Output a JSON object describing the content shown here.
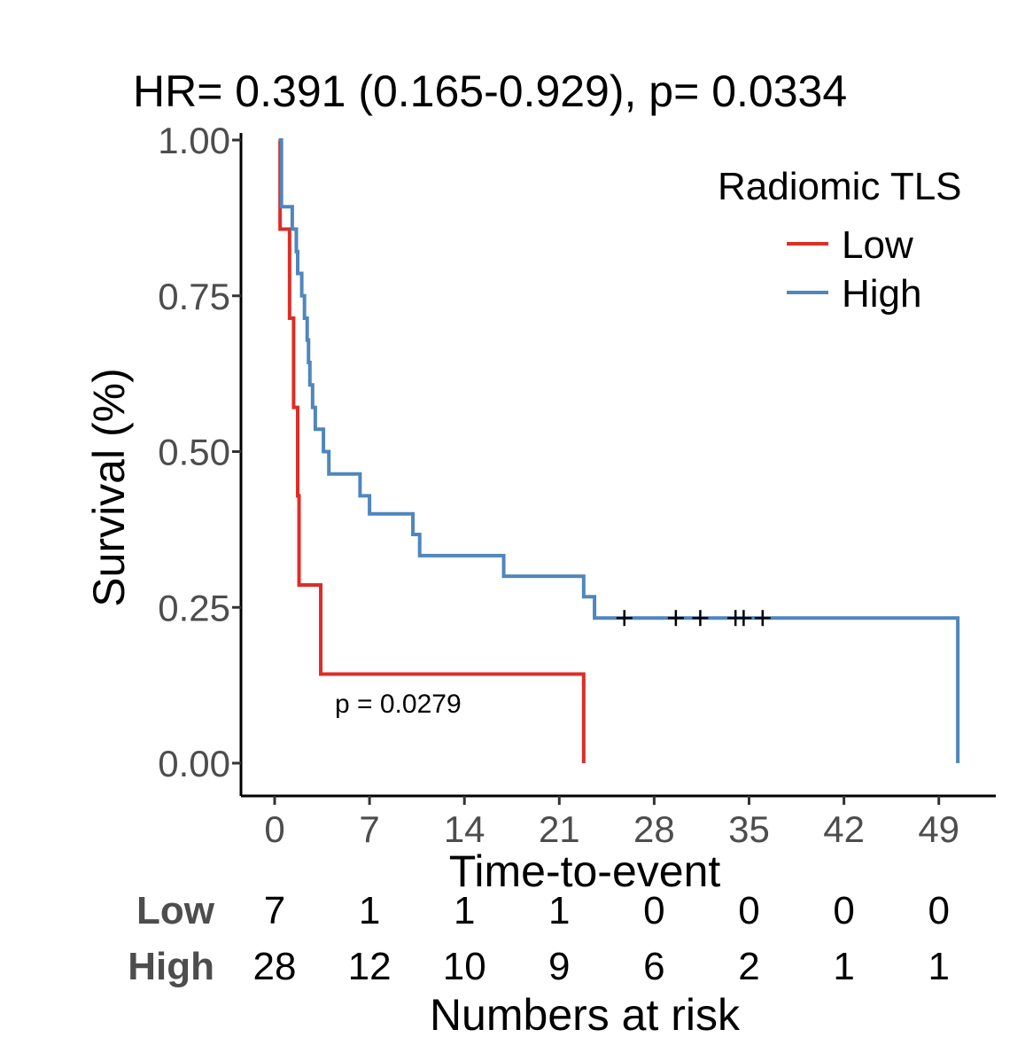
{
  "chart_data": {
    "type": "line",
    "subtype": "kaplan-meier",
    "title": "HR= 0.391 (0.165-0.929), p= 0.0334",
    "xlabel": "Time-to-event",
    "ylabel": "Survival (%)",
    "xlim": [
      0,
      51
    ],
    "ylim": [
      0,
      1
    ],
    "x_ticks": [
      0,
      7,
      14,
      21,
      28,
      35,
      42,
      49
    ],
    "y_ticks": [
      0,
      0.25,
      0.5,
      0.75,
      1
    ],
    "y_tick_labels": [
      "0.00",
      "0.25",
      "0.50",
      "0.75",
      "1.00"
    ],
    "grid": false,
    "legend": {
      "title": "Radiomic TLS",
      "position": "top-right"
    },
    "annotation": "p = 0.0279",
    "series": [
      {
        "name": "Low",
        "color": "#de2d26",
        "steps": [
          [
            0.3,
            1.0
          ],
          [
            0.4,
            0.857
          ],
          [
            1.1,
            0.714
          ],
          [
            1.4,
            0.571
          ],
          [
            1.7,
            0.429
          ],
          [
            1.8,
            0.286
          ],
          [
            3.4,
            0.143
          ],
          [
            22.8,
            0.0
          ]
        ],
        "censored": []
      },
      {
        "name": "High",
        "color": "#4f86bd",
        "steps": [
          [
            0.3,
            1.0
          ],
          [
            0.5,
            0.893
          ],
          [
            1.3,
            0.857
          ],
          [
            1.6,
            0.821
          ],
          [
            1.7,
            0.786
          ],
          [
            2.0,
            0.75
          ],
          [
            2.2,
            0.714
          ],
          [
            2.4,
            0.679
          ],
          [
            2.5,
            0.643
          ],
          [
            2.6,
            0.607
          ],
          [
            2.8,
            0.571
          ],
          [
            3.0,
            0.536
          ],
          [
            3.6,
            0.5
          ],
          [
            4.0,
            0.464
          ],
          [
            6.3,
            0.429
          ],
          [
            7.0,
            0.4
          ],
          [
            10.2,
            0.367
          ],
          [
            10.7,
            0.333
          ],
          [
            16.9,
            0.3
          ],
          [
            22.8,
            0.267
          ],
          [
            23.6,
            0.233
          ],
          [
            50.4,
            0.0
          ]
        ],
        "censored": [
          25.8,
          29.6,
          31.4,
          34.0,
          34.6,
          36.0
        ]
      }
    ],
    "risk_table": {
      "title": "Numbers at risk",
      "times": [
        0,
        7,
        14,
        21,
        28,
        35,
        42,
        49
      ],
      "rows": [
        {
          "name": "Low",
          "values": [
            7,
            1,
            1,
            1,
            0,
            0,
            0,
            0
          ]
        },
        {
          "name": "High",
          "values": [
            28,
            12,
            10,
            9,
            6,
            2,
            1,
            1
          ]
        }
      ]
    }
  }
}
